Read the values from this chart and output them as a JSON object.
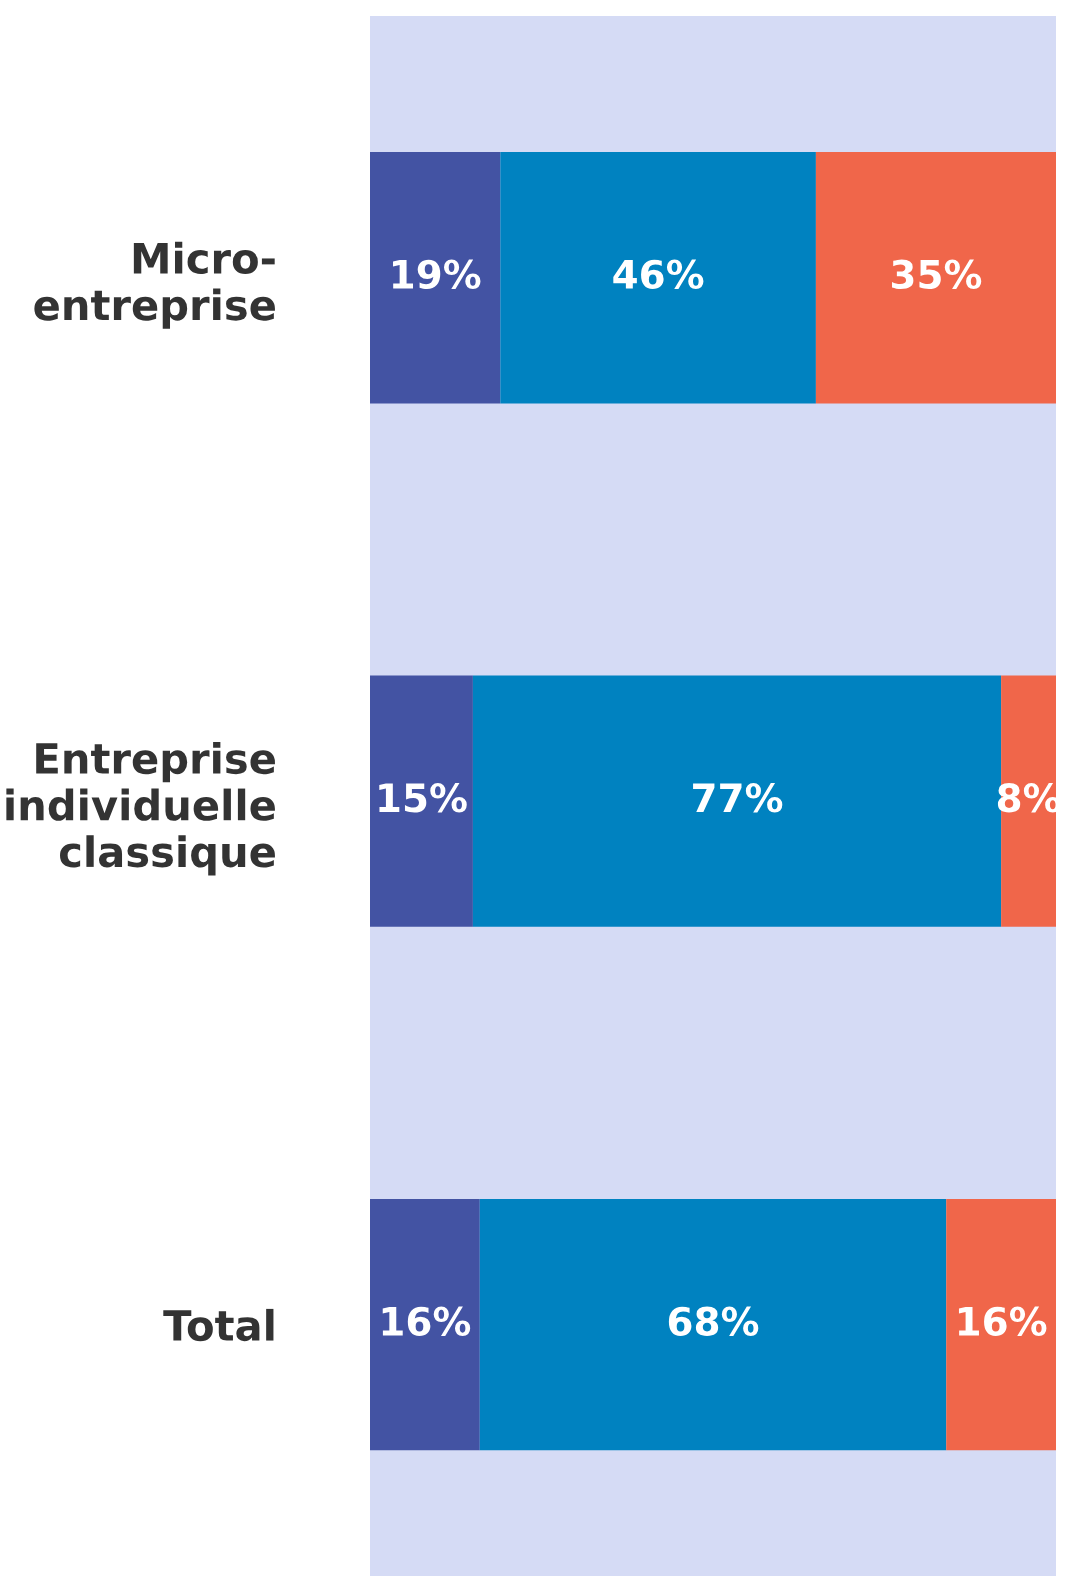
{
  "chart_data": {
    "type": "bar",
    "orientation": "horizontal",
    "stacked": true,
    "categories": [
      "Micro-\nentreprise",
      "Entreprise\nindividuelle\nclassique",
      "Total"
    ],
    "xlim": [
      0,
      100
    ],
    "tick_labels": "y",
    "grid": false,
    "legend": false,
    "series": [
      {
        "color": "#4353a3",
        "values": [
          19,
          15,
          16
        ],
        "value_labels": [
          "19%",
          "15%",
          "16%"
        ]
      },
      {
        "color": "#0082c0",
        "values": [
          46,
          77,
          68
        ],
        "value_labels": [
          "46%",
          "77%",
          "68%"
        ]
      },
      {
        "color": "#f0664a",
        "values": [
          35,
          8,
          16
        ],
        "value_labels": [
          "35%",
          "8%",
          "16%"
        ]
      }
    ]
  }
}
